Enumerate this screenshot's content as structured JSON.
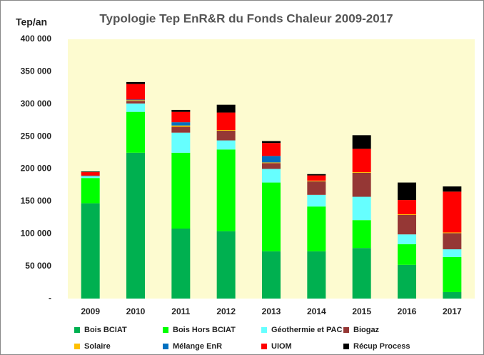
{
  "chart_data": {
    "type": "stacked_bar",
    "title": "Typologie Tep EnR&R  du Fonds Chaleur  2009-2017",
    "y_label": "Tep/an",
    "categories": [
      "2009",
      "2010",
      "2011",
      "2012",
      "2013",
      "2014",
      "2015",
      "2016",
      "2017"
    ],
    "series": [
      {
        "name": "Bois BCIAT",
        "color": "#00b050",
        "values": [
          147000,
          225000,
          108000,
          104000,
          73000,
          73000,
          78000,
          52000,
          10000
        ]
      },
      {
        "name": "Bois Hors BCIAT",
        "color": "#00ff00",
        "values": [
          39000,
          63000,
          117000,
          126000,
          106000,
          69000,
          43000,
          32000,
          54000
        ]
      },
      {
        "name": "Géothermie et PAC",
        "color": "#66ffff",
        "values": [
          3000,
          13000,
          31000,
          14000,
          21000,
          18000,
          36000,
          15000,
          12000
        ]
      },
      {
        "name": "Biogaz",
        "color": "#953735",
        "values": [
          1000,
          4000,
          9000,
          15000,
          9000,
          21000,
          37000,
          30000,
          25000
        ]
      },
      {
        "name": "Solaire",
        "color": "#ffc000",
        "values": [
          0,
          1000,
          2000,
          1000,
          1000,
          1000,
          1000,
          1000,
          1000
        ]
      },
      {
        "name": "Mélange EnR",
        "color": "#0070c0",
        "values": [
          0,
          1000,
          5000,
          0,
          10000,
          0,
          0,
          0,
          0
        ]
      },
      {
        "name": "UIOM",
        "color": "#ff0000",
        "values": [
          5000,
          24000,
          16000,
          27000,
          20000,
          8000,
          36000,
          22000,
          63000
        ]
      },
      {
        "name": "Récup Process",
        "color": "#000000",
        "values": [
          1000,
          3000,
          3000,
          12000,
          3000,
          2000,
          21000,
          27000,
          8000
        ]
      }
    ],
    "ylim": [
      0,
      400000
    ],
    "yticks": [
      {
        "value": 0,
        "label": "-"
      },
      {
        "value": 50000,
        "label": "50 000"
      },
      {
        "value": 100000,
        "label": "100 000"
      },
      {
        "value": 150000,
        "label": "150 000"
      },
      {
        "value": 200000,
        "label": "200 000"
      },
      {
        "value": 250000,
        "label": "250 000"
      },
      {
        "value": 300000,
        "label": "300 000"
      },
      {
        "value": 350000,
        "label": "350 000"
      },
      {
        "value": 400000,
        "label": "400 000"
      }
    ],
    "grid": false
  }
}
